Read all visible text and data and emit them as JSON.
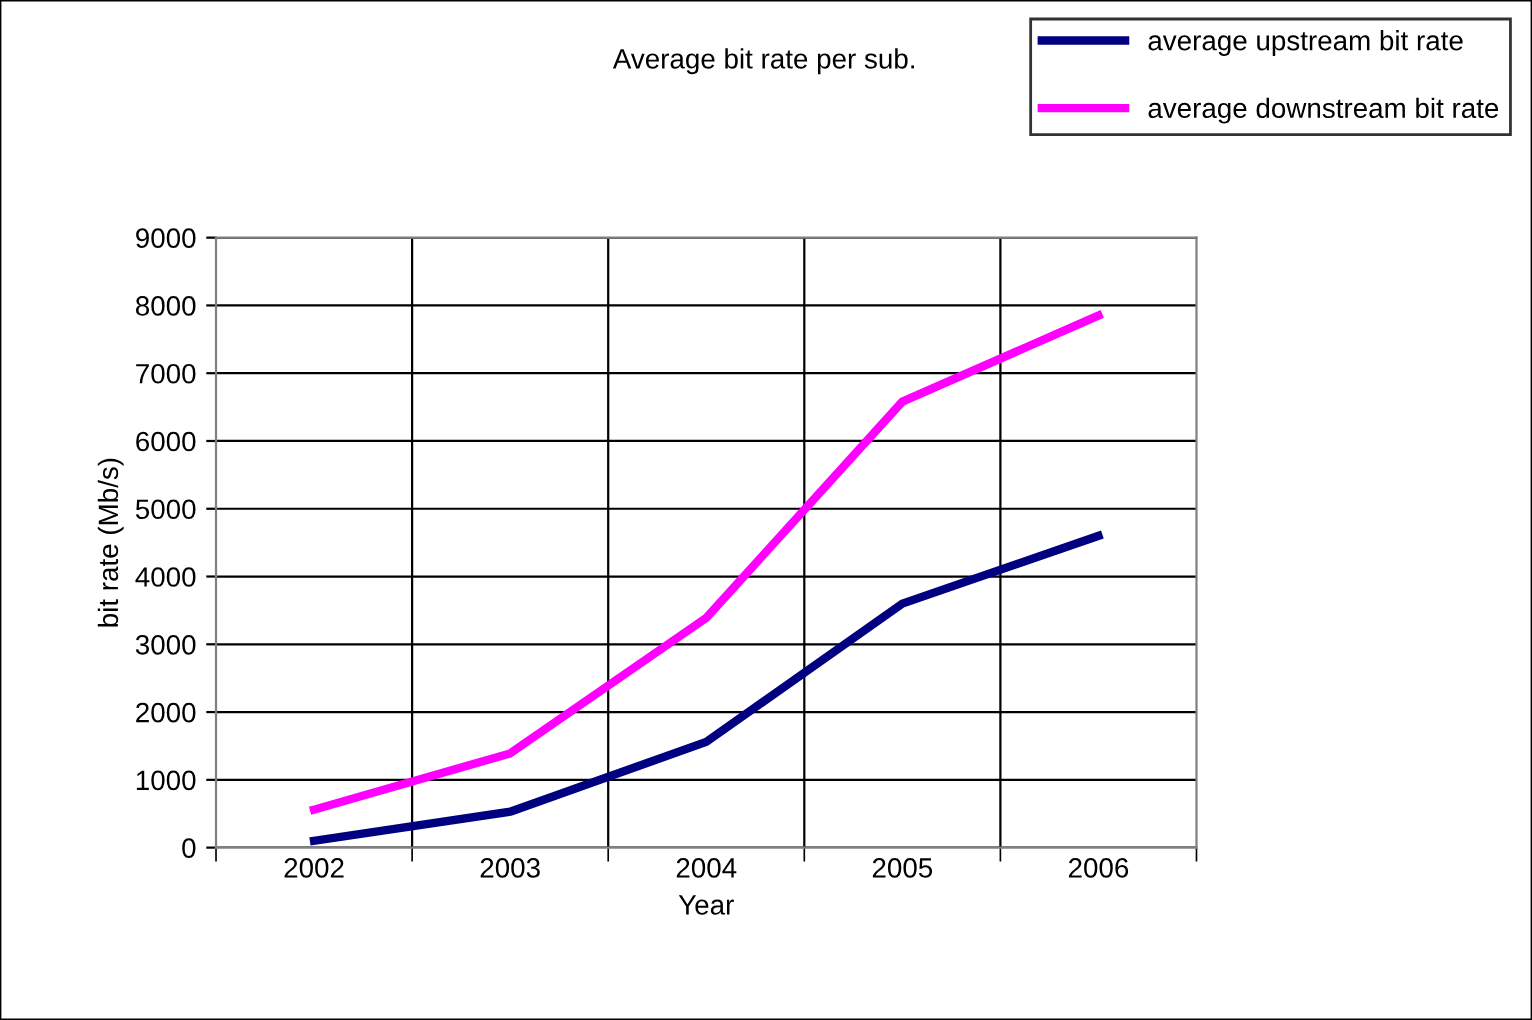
{
  "chart_data": {
    "type": "line",
    "title": "Average bit rate per sub.",
    "xlabel": "Year",
    "ylabel": "bit rate (Mb/s)",
    "categories": [
      "2002",
      "2003",
      "2004",
      "2005",
      "2006"
    ],
    "series": [
      {
        "name": "average upstream bit rate",
        "color": "#000080",
        "values": [
          100,
          530,
          1560,
          3600,
          4600
        ]
      },
      {
        "name": "average downstream bit rate",
        "color": "#ff00ff",
        "values": [
          560,
          1390,
          3390,
          6580,
          7850
        ]
      }
    ],
    "ylim": [
      0,
      9000
    ],
    "yticks": [
      0,
      1000,
      2000,
      3000,
      4000,
      5000,
      6000,
      7000,
      8000,
      9000
    ],
    "grid": true,
    "legend": "top right",
    "marker": "none",
    "line_style": "solid"
  }
}
